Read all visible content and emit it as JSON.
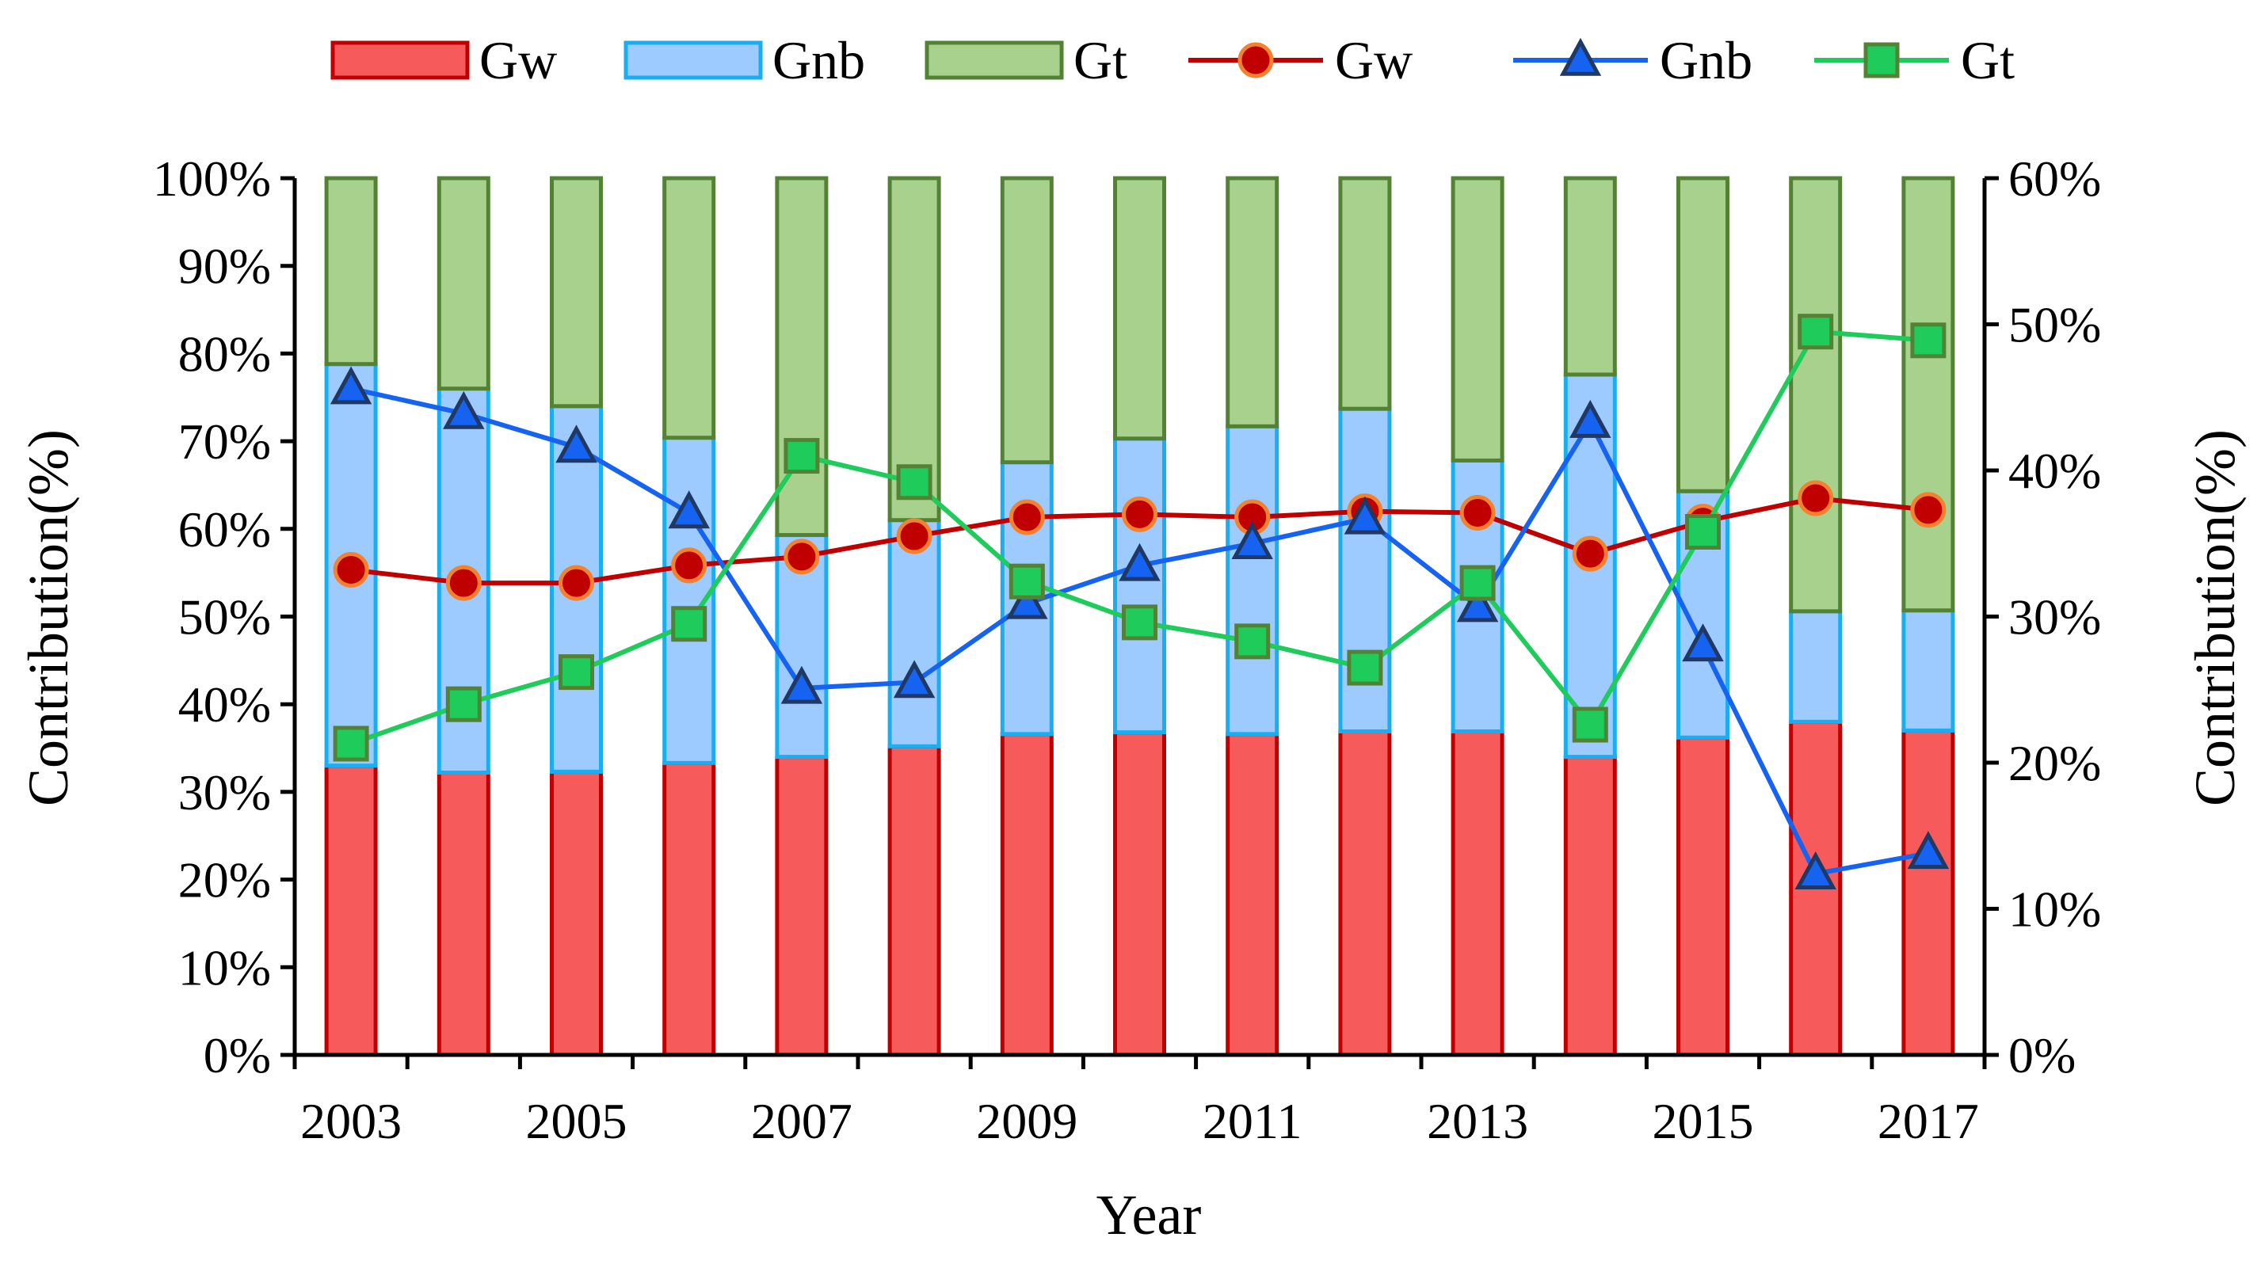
{
  "chart_data": {
    "type": "bar",
    "subtype": "stacked-bar-100-with-secondary-lines",
    "categories": [
      "2003",
      "2004",
      "2005",
      "2006",
      "2007",
      "2008",
      "2009",
      "2010",
      "2011",
      "2012",
      "2013",
      "2014",
      "2015",
      "2016",
      "2017"
    ],
    "x_tick_labels": [
      "2003",
      "",
      "2005",
      "",
      "2007",
      "",
      "2009",
      "",
      "2011",
      "",
      "2013",
      "",
      "2015",
      "",
      "2017"
    ],
    "xlabel": "Year",
    "ylabel_left": "Contribution(%)",
    "ylabel_right": "Contribution(%)",
    "ylim_left": [
      0,
      100
    ],
    "ylim_right": [
      0,
      60
    ],
    "yticks_left": [
      "0%",
      "10%",
      "20%",
      "30%",
      "40%",
      "50%",
      "60%",
      "70%",
      "80%",
      "90%",
      "100%"
    ],
    "yticks_right": [
      "0%",
      "10%",
      "20%",
      "30%",
      "40%",
      "50%",
      "60%"
    ],
    "bar_series": [
      {
        "name": "Gw",
        "fill": "#f75a5a",
        "stroke": "#c00000",
        "values": [
          33,
          32.2,
          32.3,
          33.3,
          34,
          35.2,
          36.6,
          36.8,
          36.6,
          36.9,
          36.9,
          34,
          36.2,
          38,
          37
        ]
      },
      {
        "name": "Gnb",
        "fill": "#9dcbff",
        "stroke": "#1aaef0",
        "values": [
          45.8,
          43.8,
          41.7,
          37.1,
          25.3,
          25.8,
          31,
          33.5,
          35.1,
          36.8,
          30.9,
          43.6,
          28.1,
          12.6,
          13.7
        ]
      },
      {
        "name": "Gt",
        "fill": "#a9d18e",
        "stroke": "#548235",
        "values": [
          21.2,
          24,
          26,
          29.6,
          40.7,
          39,
          32.4,
          29.7,
          28.3,
          26.3,
          32.2,
          22.4,
          35.7,
          49.4,
          49.3
        ]
      }
    ],
    "line_series": [
      {
        "name": "Gw",
        "axis": "right",
        "color": "#c00000",
        "marker": "circle",
        "marker_fill": "#c00000",
        "marker_stroke": "#f4812d",
        "values": [
          33.2,
          32.3,
          32.3,
          33.5,
          34.1,
          35.5,
          36.8,
          37,
          36.8,
          37.2,
          37.1,
          34.3,
          36.5,
          38.1,
          37.3
        ]
      },
      {
        "name": "Gnb",
        "axis": "right",
        "color": "#1563f0",
        "marker": "triangle",
        "marker_fill": "#1563f0",
        "marker_stroke": "#1f3864",
        "values": [
          45.6,
          43.9,
          41.6,
          37.1,
          25.1,
          25.5,
          30.9,
          33.5,
          35,
          36.7,
          30.7,
          43.3,
          28,
          12.4,
          13.8
        ]
      },
      {
        "name": "Gt",
        "axis": "right",
        "color": "#1fcb5b",
        "marker": "square",
        "marker_fill": "#1fcb5b",
        "marker_stroke": "#548235",
        "values": [
          21.3,
          24,
          26.2,
          29.5,
          41,
          39.2,
          32.4,
          29.6,
          28.3,
          26.5,
          32.3,
          22.6,
          35.8,
          49.5,
          48.9
        ]
      }
    ],
    "legend": [
      {
        "label": "Gw",
        "kind": "bar",
        "fill": "#f75a5a",
        "stroke": "#c00000"
      },
      {
        "label": "Gnb",
        "kind": "bar",
        "fill": "#9dcbff",
        "stroke": "#1aaef0"
      },
      {
        "label": "Gt",
        "kind": "bar",
        "fill": "#a9d18e",
        "stroke": "#548235"
      },
      {
        "label": "Gw",
        "kind": "line",
        "color": "#c00000",
        "marker": "circle",
        "marker_fill": "#c00000",
        "marker_stroke": "#f4812d"
      },
      {
        "label": "Gnb",
        "kind": "line",
        "color": "#1563f0",
        "marker": "triangle",
        "marker_fill": "#1563f0",
        "marker_stroke": "#1f3864"
      },
      {
        "label": "Gt",
        "kind": "line",
        "color": "#1fcb5b",
        "marker": "square",
        "marker_fill": "#1fcb5b",
        "marker_stroke": "#548235"
      }
    ],
    "legend_position": "top",
    "grid": false
  }
}
